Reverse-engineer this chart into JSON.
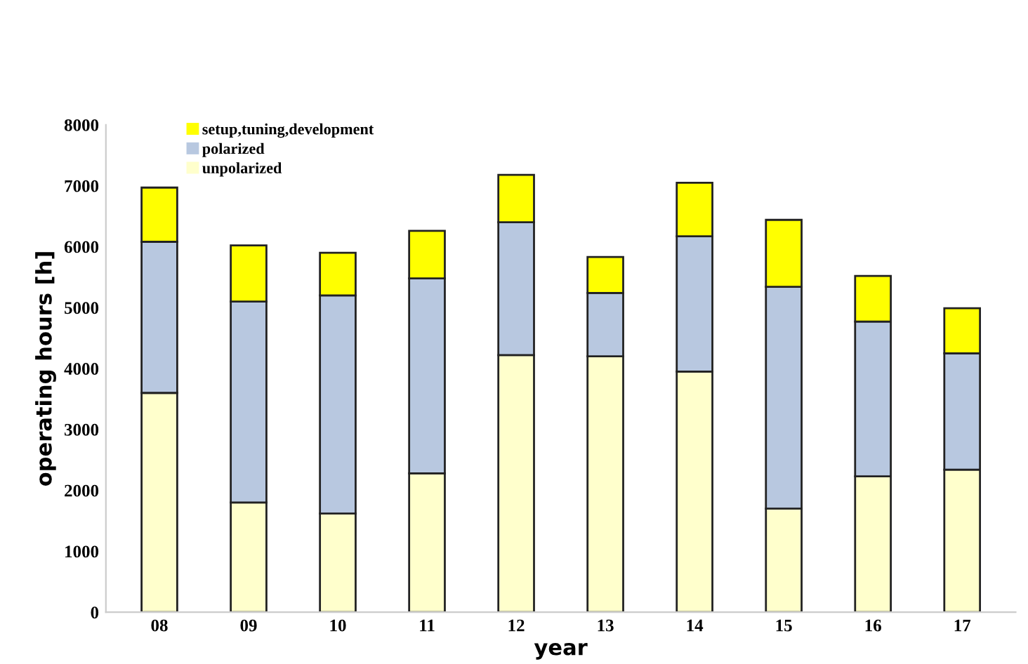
{
  "chart_data": {
    "type": "bar",
    "stacked": true,
    "xlabel": "year",
    "ylabel": "operating hours [h]",
    "categories": [
      "08",
      "09",
      "10",
      "11",
      "12",
      "13",
      "14",
      "15",
      "16",
      "17"
    ],
    "series": [
      {
        "name": "unpolarized",
        "color": "#ffffcc",
        "values": [
          3600,
          1800,
          1620,
          2280,
          4220,
          4200,
          3950,
          1700,
          2230,
          2340
        ]
      },
      {
        "name": "polarized",
        "color": "#b8c8e0",
        "values": [
          2480,
          3300,
          3580,
          3200,
          2180,
          1040,
          2220,
          3640,
          2540,
          1910
        ]
      },
      {
        "name": "setup,tuning,development",
        "color": "#ffff00",
        "values": [
          890,
          920,
          700,
          780,
          780,
          590,
          880,
          1100,
          750,
          740
        ]
      }
    ],
    "ylim": [
      0,
      8000
    ],
    "yticks": [
      0,
      1000,
      2000,
      3000,
      4000,
      5000,
      6000,
      7000,
      8000
    ],
    "grid": false,
    "legend": "top left"
  }
}
